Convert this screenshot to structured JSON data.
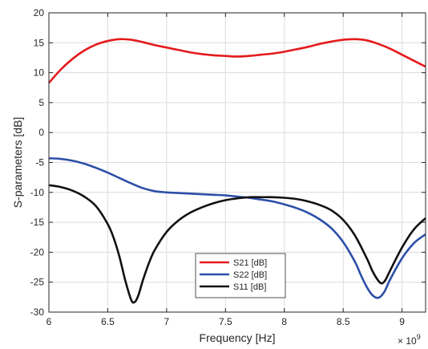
{
  "chart_data": {
    "type": "line",
    "title": "",
    "xlabel": "Frequency [Hz]",
    "ylabel": "S-parameters [dB]",
    "x_exponent_label": "× 10",
    "x_exponent_power": "9",
    "xlim": [
      6,
      9.2
    ],
    "ylim": [
      -30,
      20
    ],
    "xticks": [
      6,
      6.5,
      7,
      7.5,
      8,
      8.5,
      9
    ],
    "xtick_labels": [
      "6",
      "6.5",
      "7",
      "7.5",
      "8",
      "8.5",
      "9"
    ],
    "yticks": [
      -30,
      -25,
      -20,
      -15,
      -10,
      -5,
      0,
      5,
      10,
      15,
      20
    ],
    "ytick_labels": [
      "-30",
      "-25",
      "-20",
      "-15",
      "-10",
      "-5",
      "0",
      "5",
      "10",
      "15",
      "20"
    ],
    "grid": true,
    "legend_position": "bottom-center",
    "series": [
      {
        "name": "S21 [dB]",
        "color": "#e41a1c",
        "x": [
          6.0,
          6.1,
          6.2,
          6.3,
          6.4,
          6.5,
          6.6,
          6.7,
          6.8,
          6.9,
          7.0,
          7.1,
          7.2,
          7.3,
          7.4,
          7.5,
          7.6,
          7.7,
          7.8,
          7.9,
          8.0,
          8.1,
          8.2,
          8.3,
          8.4,
          8.5,
          8.6,
          8.7,
          8.8,
          8.9,
          9.0,
          9.1,
          9.2
        ],
        "values": [
          8.3,
          10.5,
          12.3,
          13.7,
          14.7,
          15.3,
          15.6,
          15.5,
          15.1,
          14.6,
          14.2,
          13.8,
          13.4,
          13.1,
          12.9,
          12.8,
          12.7,
          12.8,
          13.0,
          13.2,
          13.5,
          13.9,
          14.3,
          14.8,
          15.2,
          15.5,
          15.6,
          15.4,
          14.8,
          14.0,
          13.0,
          12.0,
          11.0
        ]
      },
      {
        "name": "S22 [dB]",
        "color": "#2c4fa8",
        "x": [
          6.0,
          6.1,
          6.2,
          6.3,
          6.4,
          6.5,
          6.6,
          6.7,
          6.8,
          6.9,
          7.0,
          7.1,
          7.2,
          7.3,
          7.4,
          7.5,
          7.6,
          7.7,
          7.8,
          7.9,
          8.0,
          8.1,
          8.2,
          8.3,
          8.4,
          8.5,
          8.6,
          8.65,
          8.7,
          8.75,
          8.8,
          8.85,
          8.9,
          9.0,
          9.1,
          9.2
        ],
        "values": [
          -4.3,
          -4.4,
          -4.7,
          -5.2,
          -5.9,
          -6.7,
          -7.6,
          -8.5,
          -9.3,
          -9.8,
          -10.0,
          -10.1,
          -10.2,
          -10.3,
          -10.4,
          -10.5,
          -10.7,
          -10.9,
          -11.2,
          -11.5,
          -12.0,
          -12.6,
          -13.4,
          -14.5,
          -16.0,
          -18.3,
          -21.6,
          -23.8,
          -25.8,
          -27.2,
          -27.6,
          -26.6,
          -24.5,
          -21.0,
          -18.5,
          -17.0
        ]
      },
      {
        "name": "S11 [dB]",
        "color": "#111111",
        "x": [
          6.0,
          6.1,
          6.2,
          6.3,
          6.4,
          6.5,
          6.55,
          6.6,
          6.65,
          6.7,
          6.73,
          6.76,
          6.8,
          6.85,
          6.9,
          7.0,
          7.1,
          7.2,
          7.3,
          7.4,
          7.5,
          7.6,
          7.7,
          7.8,
          7.9,
          8.0,
          8.1,
          8.2,
          8.3,
          8.4,
          8.5,
          8.6,
          8.7,
          8.75,
          8.8,
          8.83,
          8.86,
          8.9,
          9.0,
          9.1,
          9.2
        ],
        "values": [
          -8.8,
          -9.1,
          -9.7,
          -10.7,
          -12.3,
          -15.3,
          -17.6,
          -20.8,
          -24.8,
          -28.0,
          -28.3,
          -27.2,
          -24.6,
          -21.8,
          -19.6,
          -16.6,
          -14.7,
          -13.4,
          -12.5,
          -11.8,
          -11.3,
          -11.0,
          -10.8,
          -10.8,
          -10.8,
          -10.9,
          -11.1,
          -11.5,
          -12.1,
          -13.0,
          -14.6,
          -17.2,
          -21.0,
          -23.2,
          -24.8,
          -25.2,
          -24.6,
          -23.0,
          -19.2,
          -16.2,
          -14.3
        ]
      }
    ]
  }
}
